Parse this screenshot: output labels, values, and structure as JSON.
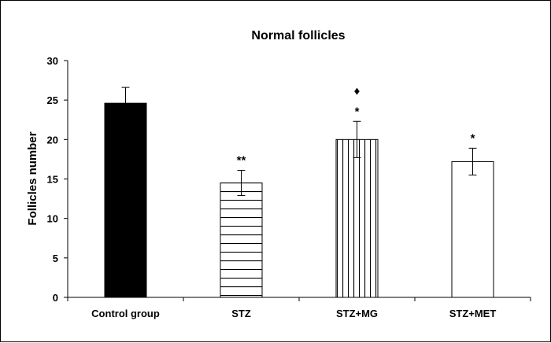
{
  "chart_data": {
    "type": "bar",
    "title": "Normal follicles",
    "xlabel": "",
    "ylabel": "Follicles number",
    "ylim": [
      0,
      30
    ],
    "yticks": [
      0,
      5,
      10,
      15,
      20,
      25,
      30
    ],
    "grid": false,
    "categories": [
      "Control group",
      "STZ",
      "STZ+MG",
      "STZ+MET"
    ],
    "values": [
      24.6,
      14.5,
      20.0,
      17.2
    ],
    "errors": [
      2.0,
      1.6,
      2.3,
      1.7
    ],
    "fills": [
      "solid",
      "horizontal-stripes",
      "vertical-stripes",
      "empty"
    ],
    "annotations": [
      "",
      "**",
      "*",
      "*"
    ],
    "extra_marks": [
      {
        "category_index": 2,
        "symbol": "♦"
      }
    ],
    "colors": {
      "ink": "#000000",
      "background": "#ffffff"
    }
  }
}
